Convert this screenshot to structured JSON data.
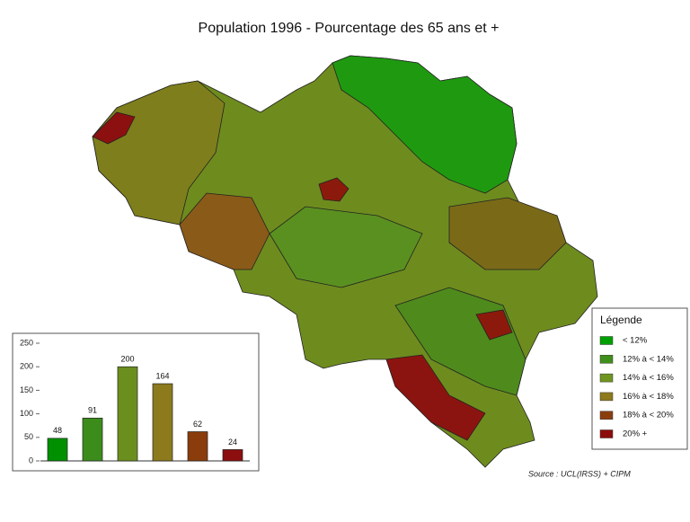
{
  "title": "Population 1996 - Pourcentage des 65 ans et +",
  "legend": {
    "title": "Légende",
    "items": [
      {
        "label": "< 12%",
        "color": "#00a000"
      },
      {
        "label": "12% à < 14%",
        "color": "#3f8f1a"
      },
      {
        "label": "14% à < 16%",
        "color": "#6f9520"
      },
      {
        "label": "16% à < 18%",
        "color": "#8c7a1c"
      },
      {
        "label": "18% à < 20%",
        "color": "#8a3e0e"
      },
      {
        "label": "20% +",
        "color": "#8c0c0c"
      }
    ]
  },
  "chart_data": {
    "type": "bar",
    "categories": [
      null,
      null,
      null,
      null,
      null,
      null
    ],
    "values": [
      48,
      91,
      200,
      164,
      62,
      24
    ],
    "colors": [
      "#009000",
      "#3c8c1c",
      "#6b8f1e",
      "#8c7a1c",
      "#8a3c0c",
      "#8c0e0e"
    ],
    "ylim": [
      0,
      250
    ],
    "yticks": [
      0,
      50,
      100,
      150,
      200,
      250
    ]
  },
  "source": "Source : UCL(IRSS) + CIPM"
}
